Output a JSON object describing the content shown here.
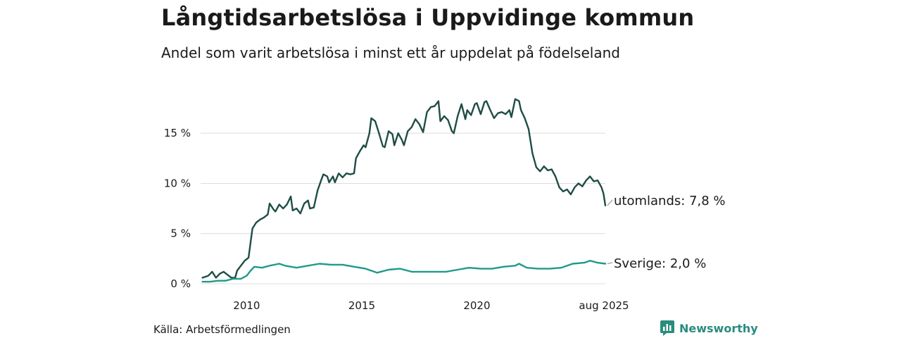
{
  "header": {
    "title": "Långtidsarbetslösa i Uppvidinge kommun",
    "subtitle": "Andel som varit arbetslösa i minst ett år uppdelat på födelseland"
  },
  "footer": {
    "source": "Källa: Arbetsförmedlingen",
    "brand": "Newsworthy"
  },
  "chart_data": {
    "type": "line",
    "title": "Långtidsarbetslösa i Uppvidinge kommun",
    "subtitle": "Andel som varit arbetslösa i minst ett år uppdelat på födelseland",
    "xlabel": "",
    "ylabel": "",
    "ylim": [
      0,
      18.8
    ],
    "yticks": [
      0,
      5,
      10,
      15
    ],
    "ytick_labels": [
      "0 %",
      "5 %",
      "10 %",
      "15 %"
    ],
    "xlim": [
      "2008-01",
      "2025-08"
    ],
    "xticks": [
      "2010-01",
      "2015-01",
      "2020-01",
      "2025-08"
    ],
    "xtick_labels": [
      "2010",
      "2015",
      "2020",
      "aug 2025"
    ],
    "grid": "horizontal",
    "legend": "direct labels at line ends",
    "series": [
      {
        "name": "utomlands",
        "end_label": "utomlands: 7,8 %",
        "color": "#1e4d45",
        "points": [
          [
            "2008-02",
            0.6
          ],
          [
            "2008-05",
            0.8
          ],
          [
            "2008-07",
            1.2
          ],
          [
            "2008-09",
            0.6
          ],
          [
            "2008-11",
            1.0
          ],
          [
            "2009-01",
            1.2
          ],
          [
            "2009-03",
            0.9
          ],
          [
            "2009-05",
            0.6
          ],
          [
            "2009-07",
            0.6
          ],
          [
            "2009-08",
            1.3
          ],
          [
            "2009-10",
            1.8
          ],
          [
            "2009-12",
            2.3
          ],
          [
            "2010-02",
            2.6
          ],
          [
            "2010-04",
            5.5
          ],
          [
            "2010-06",
            6.1
          ],
          [
            "2010-08",
            6.4
          ],
          [
            "2010-10",
            6.6
          ],
          [
            "2010-12",
            6.9
          ],
          [
            "2011-01",
            8.0
          ],
          [
            "2011-03",
            7.4
          ],
          [
            "2011-04",
            7.2
          ],
          [
            "2011-06",
            7.9
          ],
          [
            "2011-08",
            7.5
          ],
          [
            "2011-10",
            7.9
          ],
          [
            "2011-12",
            8.7
          ],
          [
            "2012-01",
            7.3
          ],
          [
            "2012-03",
            7.5
          ],
          [
            "2012-05",
            7.0
          ],
          [
            "2012-07",
            8.0
          ],
          [
            "2012-09",
            8.3
          ],
          [
            "2012-10",
            7.5
          ],
          [
            "2012-12",
            7.6
          ],
          [
            "2013-02",
            9.3
          ],
          [
            "2013-04",
            10.4
          ],
          [
            "2013-05",
            10.9
          ],
          [
            "2013-07",
            10.7
          ],
          [
            "2013-08",
            10.1
          ],
          [
            "2013-10",
            10.7
          ],
          [
            "2013-11",
            10.1
          ],
          [
            "2014-01",
            11.0
          ],
          [
            "2014-03",
            10.6
          ],
          [
            "2014-05",
            11.0
          ],
          [
            "2014-07",
            10.9
          ],
          [
            "2014-09",
            11.0
          ],
          [
            "2014-10",
            12.5
          ],
          [
            "2014-12",
            13.2
          ],
          [
            "2015-02",
            13.8
          ],
          [
            "2015-03",
            13.6
          ],
          [
            "2015-05",
            15.0
          ],
          [
            "2015-06",
            16.5
          ],
          [
            "2015-08",
            16.2
          ],
          [
            "2015-10",
            15.0
          ],
          [
            "2015-12",
            13.7
          ],
          [
            "2016-01",
            13.6
          ],
          [
            "2016-03",
            15.2
          ],
          [
            "2016-05",
            14.9
          ],
          [
            "2016-06",
            13.8
          ],
          [
            "2016-08",
            15.0
          ],
          [
            "2016-10",
            14.3
          ],
          [
            "2016-11",
            13.8
          ],
          [
            "2017-01",
            15.2
          ],
          [
            "2017-03",
            15.6
          ],
          [
            "2017-05",
            16.4
          ],
          [
            "2017-07",
            15.9
          ],
          [
            "2017-09",
            15.1
          ],
          [
            "2017-11",
            17.1
          ],
          [
            "2018-01",
            17.6
          ],
          [
            "2018-03",
            17.7
          ],
          [
            "2018-05",
            18.2
          ],
          [
            "2018-06",
            16.2
          ],
          [
            "2018-08",
            16.7
          ],
          [
            "2018-10",
            16.3
          ],
          [
            "2018-12",
            15.2
          ],
          [
            "2019-01",
            15.0
          ],
          [
            "2019-03",
            16.7
          ],
          [
            "2019-05",
            17.9
          ],
          [
            "2019-07",
            16.4
          ],
          [
            "2019-08",
            17.3
          ],
          [
            "2019-10",
            16.8
          ],
          [
            "2019-12",
            17.9
          ],
          [
            "2020-01",
            18.0
          ],
          [
            "2020-03",
            16.9
          ],
          [
            "2020-05",
            18.1
          ],
          [
            "2020-06",
            18.2
          ],
          [
            "2020-08",
            17.3
          ],
          [
            "2020-10",
            16.5
          ],
          [
            "2020-12",
            17.0
          ],
          [
            "2021-02",
            17.1
          ],
          [
            "2021-04",
            16.9
          ],
          [
            "2021-06",
            17.3
          ],
          [
            "2021-07",
            16.6
          ],
          [
            "2021-09",
            18.4
          ],
          [
            "2021-11",
            18.2
          ],
          [
            "2021-12",
            17.3
          ],
          [
            "2022-02",
            16.5
          ],
          [
            "2022-04",
            15.4
          ],
          [
            "2022-06",
            13.0
          ],
          [
            "2022-08",
            11.6
          ],
          [
            "2022-10",
            11.2
          ],
          [
            "2022-12",
            11.7
          ],
          [
            "2023-02",
            11.3
          ],
          [
            "2023-04",
            11.4
          ],
          [
            "2023-06",
            10.7
          ],
          [
            "2023-08",
            9.6
          ],
          [
            "2023-10",
            9.2
          ],
          [
            "2023-12",
            9.4
          ],
          [
            "2024-02",
            8.9
          ],
          [
            "2024-04",
            9.6
          ],
          [
            "2024-06",
            10.0
          ],
          [
            "2024-08",
            9.7
          ],
          [
            "2024-10",
            10.3
          ],
          [
            "2024-12",
            10.7
          ],
          [
            "2025-02",
            10.2
          ],
          [
            "2025-04",
            10.3
          ],
          [
            "2025-06",
            9.6
          ],
          [
            "2025-07",
            9.0
          ],
          [
            "2025-08",
            7.8
          ]
        ]
      },
      {
        "name": "Sverige",
        "end_label": "Sverige: 2,0 %",
        "color": "#1f9a8b",
        "points": [
          [
            "2008-02",
            0.2
          ],
          [
            "2008-06",
            0.2
          ],
          [
            "2008-10",
            0.3
          ],
          [
            "2009-02",
            0.3
          ],
          [
            "2009-06",
            0.5
          ],
          [
            "2009-10",
            0.5
          ],
          [
            "2010-01",
            0.8
          ],
          [
            "2010-03",
            1.3
          ],
          [
            "2010-05",
            1.7
          ],
          [
            "2010-09",
            1.6
          ],
          [
            "2011-01",
            1.8
          ],
          [
            "2011-06",
            2.0
          ],
          [
            "2011-09",
            1.8
          ],
          [
            "2012-03",
            1.6
          ],
          [
            "2012-09",
            1.8
          ],
          [
            "2013-03",
            2.0
          ],
          [
            "2013-09",
            1.9
          ],
          [
            "2014-03",
            1.9
          ],
          [
            "2014-09",
            1.7
          ],
          [
            "2015-03",
            1.5
          ],
          [
            "2015-09",
            1.1
          ],
          [
            "2016-03",
            1.4
          ],
          [
            "2016-09",
            1.5
          ],
          [
            "2017-03",
            1.2
          ],
          [
            "2017-09",
            1.2
          ],
          [
            "2018-03",
            1.2
          ],
          [
            "2018-09",
            1.2
          ],
          [
            "2019-03",
            1.4
          ],
          [
            "2019-09",
            1.6
          ],
          [
            "2020-03",
            1.5
          ],
          [
            "2020-09",
            1.5
          ],
          [
            "2021-03",
            1.7
          ],
          [
            "2021-09",
            1.8
          ],
          [
            "2021-11",
            2.0
          ],
          [
            "2022-03",
            1.6
          ],
          [
            "2022-09",
            1.5
          ],
          [
            "2023-03",
            1.5
          ],
          [
            "2023-09",
            1.6
          ],
          [
            "2024-03",
            2.0
          ],
          [
            "2024-09",
            2.1
          ],
          [
            "2024-12",
            2.3
          ],
          [
            "2025-04",
            2.1
          ],
          [
            "2025-08",
            2.0
          ]
        ]
      }
    ]
  }
}
